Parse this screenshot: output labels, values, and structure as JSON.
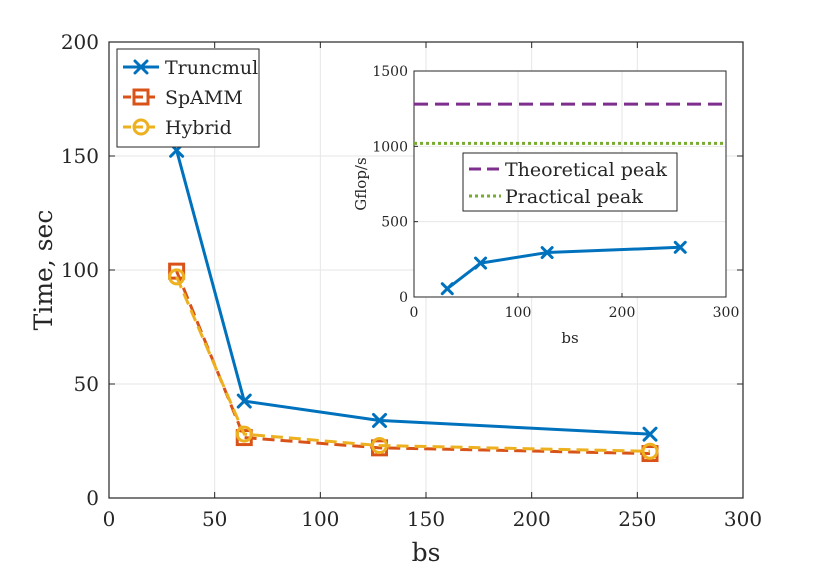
{
  "chart_data": [
    {
      "type": "line",
      "xlabel": "bs",
      "ylabel": "Time, sec",
      "xlim": [
        0,
        300
      ],
      "ylim": [
        0,
        200
      ],
      "xticks": [
        0,
        50,
        100,
        150,
        200,
        250,
        300
      ],
      "yticks": [
        0,
        50,
        100,
        150,
        200
      ],
      "grid": true,
      "legend_position": "top-left",
      "series": [
        {
          "name": "Truncmul",
          "color": "#0072BD",
          "marker": "x",
          "linestyle": "solid",
          "x": [
            32,
            64,
            128,
            256
          ],
          "y": [
            152.5,
            42.5,
            34,
            28
          ]
        },
        {
          "name": "SpAMM",
          "color": "#D95319",
          "marker": "square",
          "linestyle": "dashed",
          "x": [
            32,
            64,
            128,
            256
          ],
          "y": [
            99.5,
            26.5,
            22,
            19.5
          ]
        },
        {
          "name": "Hybrid",
          "color": "#EDB120",
          "marker": "circle",
          "linestyle": "dashed",
          "x": [
            32,
            64,
            128,
            256
          ],
          "y": [
            97,
            28,
            23,
            20.5
          ]
        }
      ]
    },
    {
      "type": "line",
      "xlabel": "bs",
      "ylabel": "Gflop/s",
      "xlim": [
        0,
        300
      ],
      "ylim": [
        0,
        1500
      ],
      "xticks": [
        0,
        100,
        200,
        300
      ],
      "yticks": [
        0,
        500,
        1000,
        1500
      ],
      "grid": true,
      "legend_position": "center-right",
      "series": [
        {
          "name": "Gflop/s",
          "color": "#0072BD",
          "marker": "x",
          "linestyle": "solid",
          "x": [
            32,
            64,
            128,
            256
          ],
          "y": [
            55,
            225,
            295,
            330
          ]
        }
      ],
      "reference_lines": [
        {
          "name": "Theoretical peak",
          "color": "#7E2F8E",
          "linestyle": "dashed",
          "y": 1280
        },
        {
          "name": "Practical peak",
          "color": "#77AC30",
          "linestyle": "dotted",
          "y": 1020
        }
      ]
    }
  ]
}
